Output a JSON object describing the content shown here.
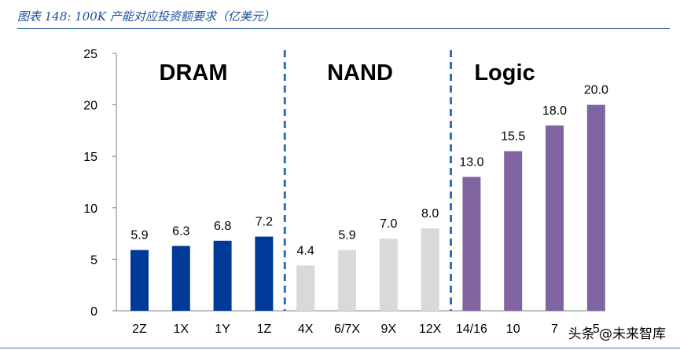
{
  "caption": "图表 148: 100K 产能对应投资额要求（亿美元）",
  "watermark": "头条 @未来智库",
  "chart_data": {
    "type": "bar",
    "title": "",
    "xlabel": "",
    "ylabel": "",
    "ylim": [
      0,
      25
    ],
    "yticks": [
      0,
      5,
      10,
      15,
      20,
      25
    ],
    "grid": false,
    "legend": "none",
    "groups": [
      {
        "label": "DRAM",
        "color": "#003a99",
        "categories": [
          "2Z",
          "1X",
          "1Y",
          "1Z"
        ],
        "values": [
          5.9,
          6.3,
          6.8,
          7.2
        ]
      },
      {
        "label": "NAND",
        "color": "#d9d9d9",
        "categories": [
          "4X",
          "6/7X",
          "9X",
          "12X"
        ],
        "values": [
          4.4,
          5.9,
          7.0,
          8.0
        ]
      },
      {
        "label": "Logic",
        "color": "#8064a2",
        "categories": [
          "14/16",
          "10",
          "7",
          "5"
        ],
        "values": [
          13.0,
          15.5,
          18.0,
          20.0
        ]
      }
    ],
    "separator_color": "#2e6fbf"
  }
}
